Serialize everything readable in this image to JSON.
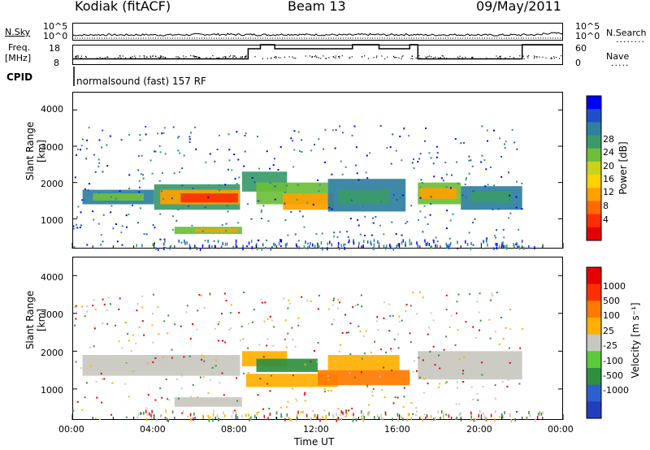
{
  "header": {
    "station": "Kodiak (fitACF)",
    "beam": "Beam 13",
    "date": "09/May/2011"
  },
  "aux": {
    "nsky_label": "N.Sky",
    "nsky_ticks": [
      "10^5",
      "10^0"
    ],
    "nsearch_label": "N.Search",
    "nsearch_ticks": [
      "10^5",
      "10^0"
    ],
    "freq_label_line1": "Freq.",
    "freq_label_line2": "[MHz]",
    "freq_ticks": [
      "18",
      "8"
    ],
    "nave_label": "Nave",
    "nave_ticks": [
      "60",
      "0"
    ],
    "cpid_label": "CPID",
    "cpid_text": "normalsound (fast) 157 RF"
  },
  "chart_data": [
    {
      "type": "heatmap",
      "title": "",
      "ylabel": "Slant Range [km]",
      "xlabel": "Time UT",
      "ylim": [
        180,
        4500
      ],
      "xlim": [
        0,
        24
      ],
      "y_ticks": [
        "4000",
        "3000",
        "2000",
        "1000"
      ],
      "colorbar": {
        "label": "Power [dB]",
        "ticks": [
          "28",
          "24",
          "20",
          "16",
          "12",
          "8",
          "4"
        ],
        "colors": [
          "#0000ff",
          "#1f4fc8",
          "#2e7fa0",
          "#3a9a6a",
          "#6dbf3a",
          "#c8d21a",
          "#ffd200",
          "#ffa000",
          "#ff6a00",
          "#ff2d00",
          "#e60000"
        ]
      }
    },
    {
      "type": "heatmap",
      "title": "",
      "ylabel": "Slant Range [km]",
      "xlabel": "Time UT",
      "ylim": [
        180,
        4500
      ],
      "xlim": [
        0,
        24
      ],
      "y_ticks": [
        "4000",
        "3000",
        "2000",
        "1000"
      ],
      "colorbar": {
        "label": "Velocity [m s⁻¹]",
        "ticks": [
          "1000",
          "500",
          "100",
          "25",
          "-25",
          "-100",
          "-500",
          "-1000"
        ],
        "colors": [
          "#1f3fbf",
          "#2e5fcf",
          "#2f8f3f",
          "#5ac93a",
          "#c8c8c0",
          "#ffb000",
          "#ff7a00",
          "#ff3000",
          "#e60000"
        ]
      }
    }
  ],
  "x_ticks": [
    "00:00",
    "04:00",
    "08:00",
    "12:00",
    "16:00",
    "20:00",
    "00:00"
  ],
  "x_axis_label": "Time UT",
  "nsky_series": [
    0.14,
    0.16,
    0.15,
    0.16,
    0.15,
    0.16,
    0.18,
    0.18,
    0.17,
    0.16,
    0.18,
    0.17,
    0.16,
    0.15,
    0.17,
    0.16,
    0.17,
    0.15,
    0.16,
    0.16,
    0.14,
    0.15,
    0.16,
    0.25
  ],
  "freq_steps": [
    {
      "from": 0.0,
      "to": 8.6,
      "mhz": 11.0
    },
    {
      "from": 8.6,
      "to": 9.2,
      "mhz": 16.0
    },
    {
      "from": 9.2,
      "to": 9.9,
      "mhz": 18.0
    },
    {
      "from": 9.9,
      "to": 13.7,
      "mhz": 16.0
    },
    {
      "from": 13.7,
      "to": 15.0,
      "mhz": 18.0
    },
    {
      "from": 15.0,
      "to": 16.5,
      "mhz": 16.0
    },
    {
      "from": 16.5,
      "to": 16.9,
      "mhz": 18.0
    },
    {
      "from": 16.9,
      "to": 22.0,
      "mhz": 11.0
    },
    {
      "from": 22.0,
      "to": 24.0,
      "mhz": 18.0
    }
  ],
  "power_regions": [
    {
      "t0": 0.5,
      "t1": 4.0,
      "r0": 1400,
      "r1": 1800,
      "c": "#2e7fa0"
    },
    {
      "t0": 1.0,
      "t1": 3.5,
      "r0": 1500,
      "r1": 1700,
      "c": "#6dbf3a"
    },
    {
      "t0": 4.0,
      "t1": 8.2,
      "r0": 1250,
      "r1": 1950,
      "c": "#3a9a6a"
    },
    {
      "t0": 4.3,
      "t1": 8.2,
      "r0": 1400,
      "r1": 1800,
      "c": "#ffa000"
    },
    {
      "t0": 5.3,
      "t1": 8.1,
      "r0": 1450,
      "r1": 1700,
      "c": "#ff2d00"
    },
    {
      "t0": 5.0,
      "t1": 8.3,
      "r0": 580,
      "r1": 780,
      "c": "#6dbf3a"
    },
    {
      "t0": 6.0,
      "t1": 8.1,
      "r0": 630,
      "r1": 730,
      "c": "#ffa000"
    },
    {
      "t0": 8.3,
      "t1": 10.5,
      "r0": 1750,
      "r1": 2300,
      "c": "#3a9a6a"
    },
    {
      "t0": 9.0,
      "t1": 12.5,
      "r0": 1400,
      "r1": 2000,
      "c": "#6dbf3a"
    },
    {
      "t0": 10.3,
      "t1": 12.8,
      "r0": 1250,
      "r1": 1700,
      "c": "#ffa000"
    },
    {
      "t0": 12.5,
      "t1": 16.3,
      "r0": 1200,
      "r1": 2100,
      "c": "#2e7fa0"
    },
    {
      "t0": 13.0,
      "t1": 15.5,
      "r0": 1400,
      "r1": 1800,
      "c": "#3a9a6a"
    },
    {
      "t0": 16.9,
      "t1": 19.0,
      "r0": 1400,
      "r1": 2000,
      "c": "#6dbf3a"
    },
    {
      "t0": 17.0,
      "t1": 18.8,
      "r0": 1550,
      "r1": 1850,
      "c": "#ffa000"
    },
    {
      "t0": 19.0,
      "t1": 22.0,
      "r0": 1250,
      "r1": 1900,
      "c": "#2e7fa0"
    },
    {
      "t0": 19.5,
      "t1": 21.5,
      "r0": 1450,
      "r1": 1750,
      "c": "#3a9a6a"
    }
  ],
  "velocity_regions": [
    {
      "t0": 0.5,
      "t1": 8.2,
      "r0": 1350,
      "r1": 1900,
      "c": "#c8c8c0"
    },
    {
      "t0": 5.0,
      "t1": 8.3,
      "r0": 530,
      "r1": 780,
      "c": "#c8c8c0"
    },
    {
      "t0": 8.3,
      "t1": 10.5,
      "r0": 1600,
      "r1": 2000,
      "c": "#ffb000"
    },
    {
      "t0": 9.0,
      "t1": 12.0,
      "r0": 1450,
      "r1": 1800,
      "c": "#2f8f3f"
    },
    {
      "t0": 8.5,
      "t1": 13.0,
      "r0": 1050,
      "r1": 1400,
      "c": "#ffb000"
    },
    {
      "t0": 12.0,
      "t1": 16.5,
      "r0": 1100,
      "r1": 1500,
      "c": "#ff7a00"
    },
    {
      "t0": 12.5,
      "t1": 16.0,
      "r0": 1500,
      "r1": 1900,
      "c": "#ffb000"
    },
    {
      "t0": 16.9,
      "t1": 22.0,
      "r0": 1250,
      "r1": 2000,
      "c": "#c8c8c0"
    }
  ]
}
